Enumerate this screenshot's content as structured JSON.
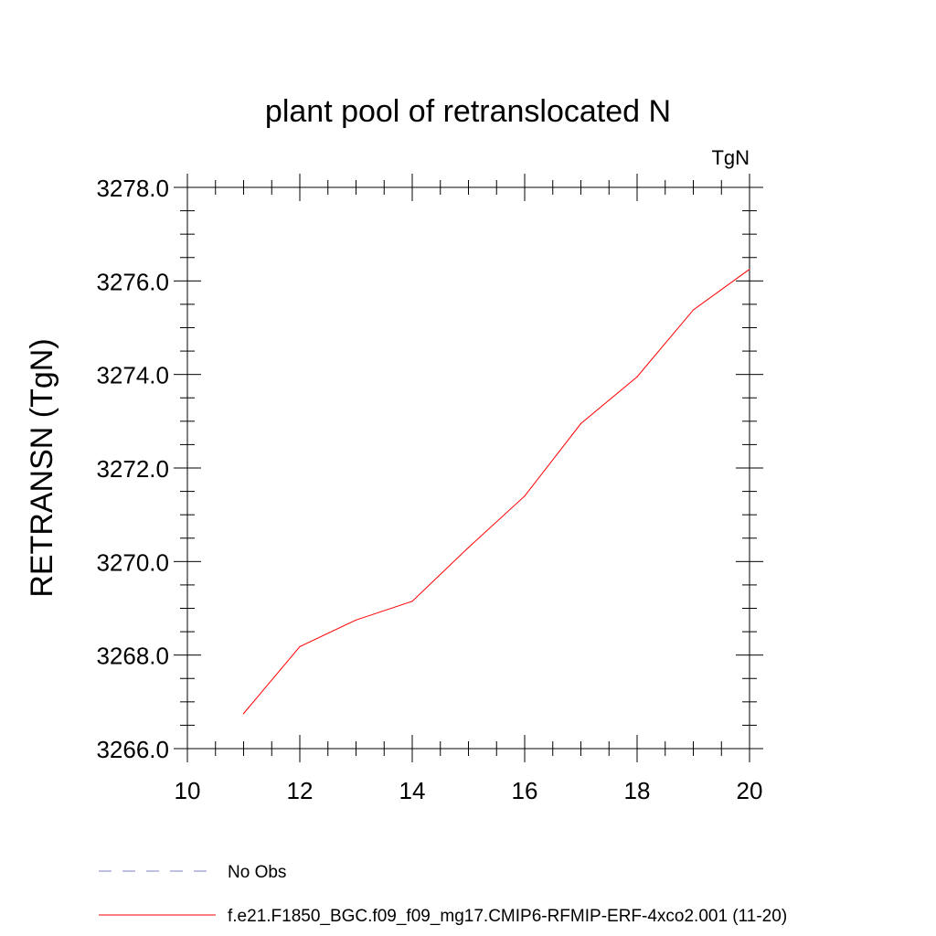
{
  "chart_data": {
    "type": "line",
    "title": "plant pool of retranslocated N",
    "units_label": "TgN",
    "xlabel": "",
    "ylabel": "RETRANSN  (TgN)",
    "xlim": [
      10,
      20
    ],
    "ylim": [
      3266.0,
      3278.0
    ],
    "x_ticks": [
      10,
      12,
      14,
      16,
      18,
      20
    ],
    "x_tick_labels": [
      "10",
      "12",
      "14",
      "16",
      "18",
      "20"
    ],
    "y_ticks": [
      3266.0,
      3268.0,
      3270.0,
      3272.0,
      3274.0,
      3276.0,
      3278.0
    ],
    "y_tick_labels": [
      "3266.0",
      "3268.0",
      "3270.0",
      "3272.0",
      "3274.0",
      "3276.0",
      "3278.0"
    ],
    "grid": false,
    "legend_position": "bottom",
    "series": [
      {
        "name": "f.e21.F1850_BGC.f09_f09_mg17.CMIP6-RFMIP-ERF-4xco2.001 (11-20)",
        "color": "#ff0000",
        "dashed": false,
        "x": [
          11,
          12,
          13,
          14,
          15,
          16,
          17,
          18,
          19,
          20
        ],
        "values": [
          3266.75,
          3268.18,
          3268.75,
          3269.15,
          3270.3,
          3271.4,
          3272.95,
          3273.95,
          3275.38,
          3276.25
        ]
      },
      {
        "name": "No Obs",
        "color": "#7f7fbf",
        "dashed": true,
        "x": [],
        "values": []
      }
    ]
  }
}
